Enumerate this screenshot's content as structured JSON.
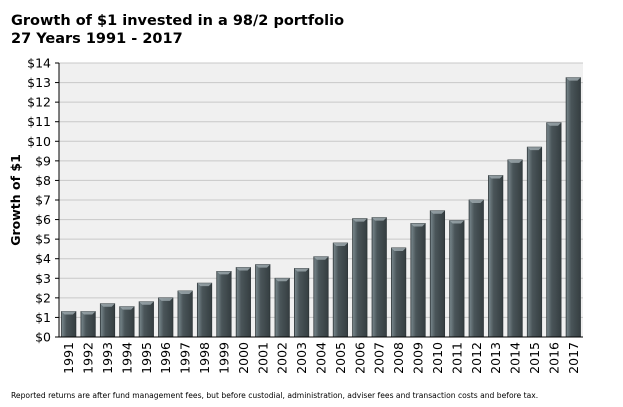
{
  "header": {
    "title_line1": "Growth of $1 invested in a 98/2 portfolio",
    "title_line2": "27 Years 1991 - 2017"
  },
  "footnote": "Reported returns are after fund management fees, but before custodial, administration, adviser fees and transaction costs and before tax.",
  "colors": {
    "plot_background": "#f0f0f0",
    "bar_fill": "#4a5559",
    "bar_highlight": "#7b8a8f",
    "gridline": "#c8c8c8"
  },
  "chart_data": {
    "type": "bar",
    "title": "Growth of $1 invested in a 98/2 portfolio",
    "subtitle": "27 Years 1991 - 2017",
    "xlabel": "",
    "ylabel": "Growth of $1",
    "ylim": [
      0,
      14
    ],
    "y_ticks": [
      "$0",
      "$1",
      "$2",
      "$3",
      "$4",
      "$5",
      "$6",
      "$7",
      "$8",
      "$9",
      "$10",
      "$11",
      "$12",
      "$13",
      "$14"
    ],
    "grid": true,
    "categories": [
      "1991",
      "1992",
      "1993",
      "1994",
      "1995",
      "1996",
      "1997",
      "1998",
      "1999",
      "2000",
      "2001",
      "2002",
      "2003",
      "2004",
      "2005",
      "2006",
      "2007",
      "2008",
      "2009",
      "2010",
      "2011",
      "2012",
      "2013",
      "2014",
      "2015",
      "2016",
      "2017"
    ],
    "values": [
      1.3,
      1.3,
      1.7,
      1.55,
      1.8,
      2.0,
      2.35,
      2.75,
      3.35,
      3.55,
      3.7,
      3.0,
      3.5,
      4.1,
      4.8,
      6.05,
      6.1,
      4.55,
      5.8,
      6.45,
      5.95,
      7.0,
      8.25,
      9.05,
      9.7,
      10.95,
      13.25
    ]
  }
}
